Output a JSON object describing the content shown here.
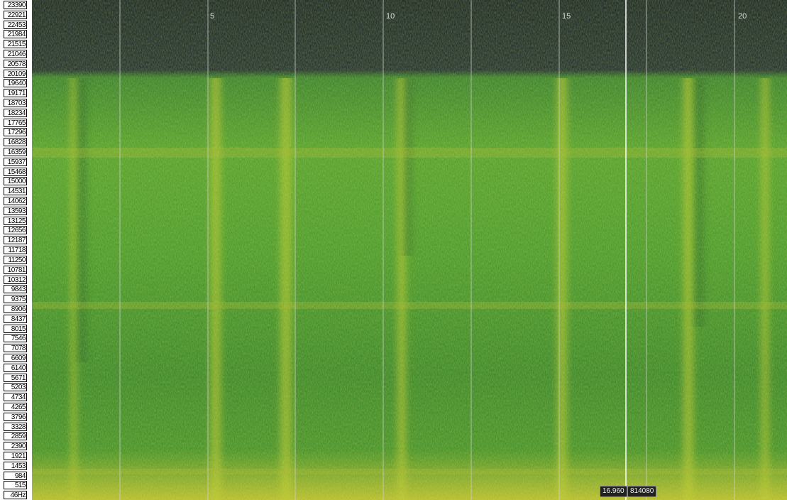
{
  "frequency_labels": [
    "23390",
    "22921",
    "22453",
    "21984",
    "21515",
    "21046",
    "20578",
    "20109",
    "19640",
    "19171",
    "18703",
    "18234",
    "17765",
    "17296",
    "16828",
    "16359",
    "15937",
    "15468",
    "15000",
    "14531",
    "14062",
    "13593",
    "13125",
    "12656",
    "12187",
    "11718",
    "11250",
    "10781",
    "10312",
    "9843",
    "9375",
    "8906",
    "8437",
    "8015",
    "7546",
    "7078",
    "6609",
    "6140",
    "5671",
    "5203",
    "4734",
    "4265",
    "3796",
    "3328",
    "2859",
    "2390",
    "1921",
    "1453",
    "984",
    "515",
    "46Hz"
  ],
  "time_labels": [
    "5",
    "10",
    "15",
    "20"
  ],
  "cursor_readout": {
    "time": "16.960",
    "sample": "814080"
  }
}
